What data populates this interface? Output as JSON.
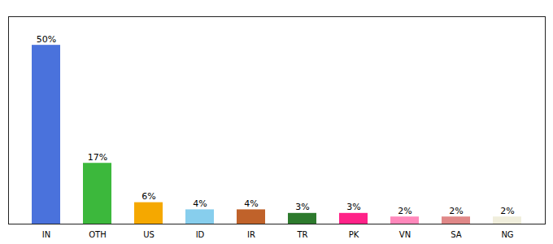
{
  "chart_data": {
    "type": "bar",
    "categories": [
      "IN",
      "OTH",
      "US",
      "ID",
      "IR",
      "TR",
      "PK",
      "VN",
      "SA",
      "NG"
    ],
    "values": [
      50,
      17,
      6,
      4,
      4,
      3,
      3,
      2,
      2,
      2
    ],
    "value_labels": [
      "50%",
      "17%",
      "6%",
      "4%",
      "4%",
      "3%",
      "3%",
      "2%",
      "2%",
      "2%"
    ],
    "colors": [
      "#4a72dc",
      "#3cb83c",
      "#f5a800",
      "#87ceed",
      "#c0622a",
      "#2d7a2d",
      "#ff2288",
      "#ff88bb",
      "#e08888",
      "#f0eedc"
    ],
    "ylim": [
      0,
      58
    ],
    "data_labels": true,
    "tick_labels": "x"
  }
}
